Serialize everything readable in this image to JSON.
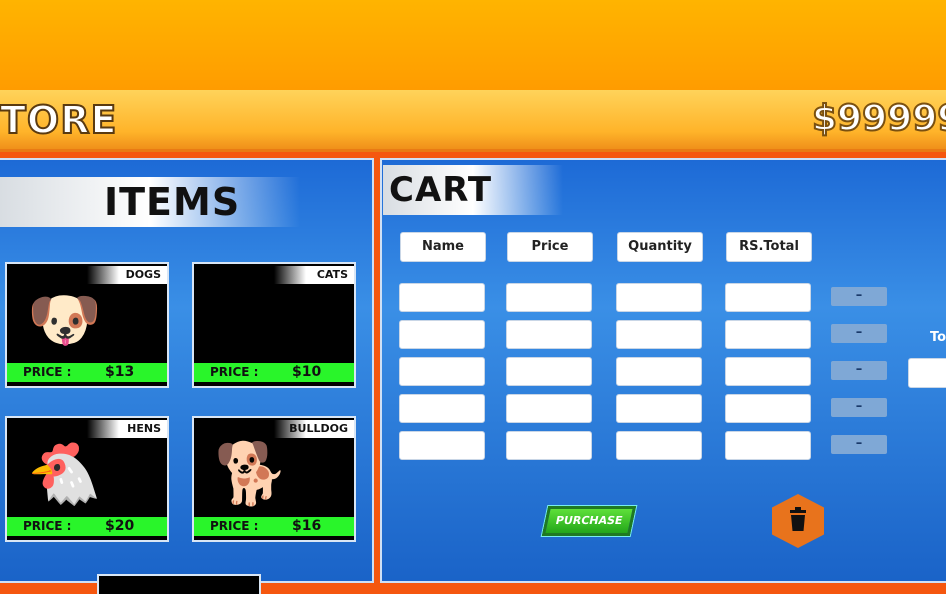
{
  "header": {
    "title": "TORE",
    "balance": "$99999"
  },
  "items": {
    "title": "ITEMS",
    "cards": [
      {
        "name": "DOGS",
        "price_label": "PRICE :",
        "price": "$13",
        "icon": "🐶"
      },
      {
        "name": "CATS",
        "price_label": "PRICE :",
        "price": "$10",
        "icon": "🐱"
      },
      {
        "name": "HENS",
        "price_label": "PRICE :",
        "price": "$20",
        "icon": "🐔"
      },
      {
        "name": "BULLDOG",
        "price_label": "PRICE :",
        "price": "$16",
        "icon": "🐕"
      }
    ]
  },
  "cart": {
    "title": "CART",
    "columns": [
      "Name",
      "Price",
      "Quantity",
      "RS.Total"
    ],
    "remove_label": "–",
    "total_label": "To",
    "purchase_label": "PURCHASE",
    "delete_icon": "trash-icon"
  }
}
